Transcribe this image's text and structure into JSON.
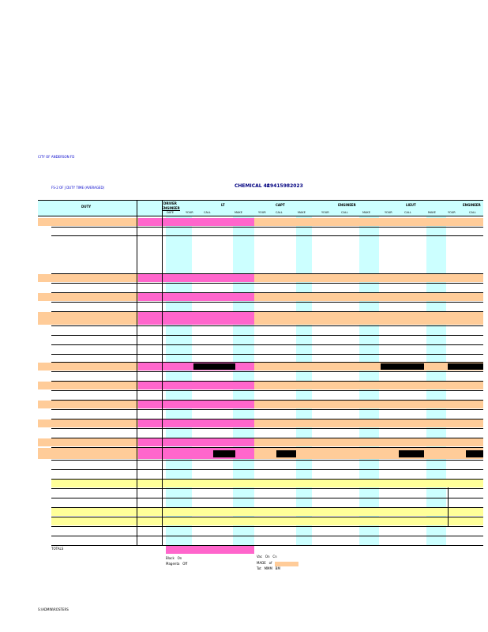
{
  "colors": {
    "cyan": "#ccffff",
    "orange": "#ffcc99",
    "pink": "#ff66cc",
    "yellow": "#ffff99",
    "black_bar": "#000000",
    "title_text": "#000080",
    "small_text": "#0000cc"
  },
  "header_meta": {
    "city_line": "CITY OF ANDERSON FD",
    "sheet_line": "FS-2 OF J DUTY TIME (AVERAGED)",
    "title": "CHEMICAL 41",
    "serial": "#9415982023"
  },
  "table": {
    "duty_label": "DUTY",
    "groups": [
      "DRIVER",
      "ENGINEER",
      "LT",
      "CAPT",
      "ENGINEER",
      "LIEUT",
      "ENGINEER"
    ],
    "subcols": [
      "DATE",
      "YOUR",
      "CALL",
      "MAKE",
      "YOUR",
      "CALL",
      "MAKE",
      "YOUR",
      "CALL",
      "MAKE",
      "YOUR",
      "CALL",
      "MAKE",
      "YOUR",
      "CALL"
    ]
  },
  "totals": {
    "label": "TOTALS"
  },
  "legend": {
    "left": [
      "Black   On",
      "Magenta   Off"
    ],
    "right": [
      "Vac   On   Cn",
      "MADE   of",
      "Tot   MMM   BM"
    ]
  },
  "footer": {
    "path": "S:\\ADMIN\\ROSTERS"
  }
}
